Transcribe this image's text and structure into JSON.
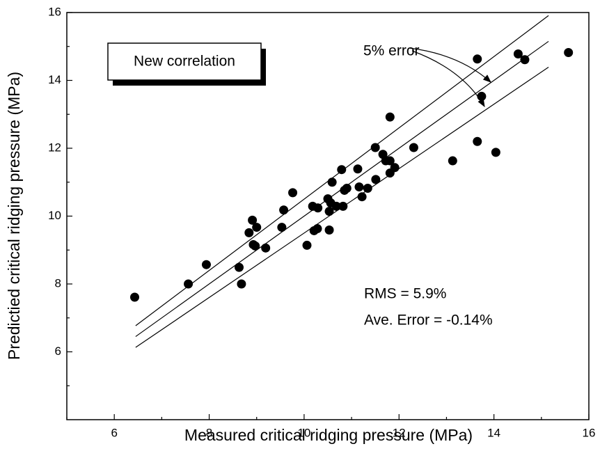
{
  "chart_data": {
    "type": "scatter",
    "x_label": "Measured critical ridging pressure (MPa)",
    "y_label": "Predictied critical ridging pressure (MPa)",
    "legend_box": "New correlation",
    "annotations": [
      "5% error",
      "RMS = 5.9%",
      "Ave. Error = -0.14%"
    ],
    "color": "#000000",
    "xlim": [
      5,
      16
    ],
    "ylim": [
      4,
      16
    ],
    "xticks": [
      6,
      8,
      10,
      12,
      14,
      16
    ],
    "yticks": [
      6,
      8,
      10,
      12,
      14,
      16
    ],
    "xticks_minor": [
      5,
      7,
      9,
      11,
      13,
      15
    ],
    "yticks_minor": [
      5,
      7,
      9,
      11,
      13,
      15
    ],
    "x": [
      6.43,
      7.56,
      7.94,
      8.63,
      8.68,
      8.84,
      8.91,
      8.93,
      9.0,
      8.97,
      9.19,
      9.53,
      9.57,
      9.76,
      10.06,
      10.18,
      10.21,
      10.28,
      10.29,
      10.5,
      10.53,
      10.56,
      10.53,
      10.59,
      10.68,
      10.79,
      10.82,
      10.85,
      10.9,
      11.13,
      11.16,
      11.22,
      11.34,
      11.5,
      11.51,
      11.66,
      11.72,
      11.81,
      11.81,
      11.91,
      11.81,
      12.31,
      13.13,
      13.65,
      13.74,
      14.04,
      13.65,
      14.51,
      14.65,
      15.57
    ],
    "values": [
      7.61,
      8.0,
      8.57,
      8.49,
      8.0,
      9.51,
      9.88,
      9.16,
      9.67,
      9.12,
      9.06,
      9.67,
      10.18,
      10.69,
      9.14,
      10.29,
      9.57,
      9.63,
      10.24,
      10.51,
      10.14,
      10.39,
      9.59,
      11.0,
      10.29,
      11.37,
      10.29,
      10.76,
      10.82,
      11.39,
      10.86,
      10.57,
      10.82,
      12.02,
      11.08,
      11.82,
      11.63,
      11.63,
      11.27,
      11.43,
      12.92,
      12.02,
      11.63,
      12.2,
      13.53,
      11.88,
      14.63,
      14.78,
      14.61,
      14.82
    ],
    "lines": [
      {
        "x": [
          6.45,
          15.15
        ],
        "values": [
          6.77,
          15.91
        ]
      },
      {
        "x": [
          6.45,
          15.15
        ],
        "values": [
          6.45,
          15.15
        ]
      },
      {
        "x": [
          6.45,
          15.15
        ],
        "values": [
          6.13,
          14.39
        ]
      }
    ]
  }
}
